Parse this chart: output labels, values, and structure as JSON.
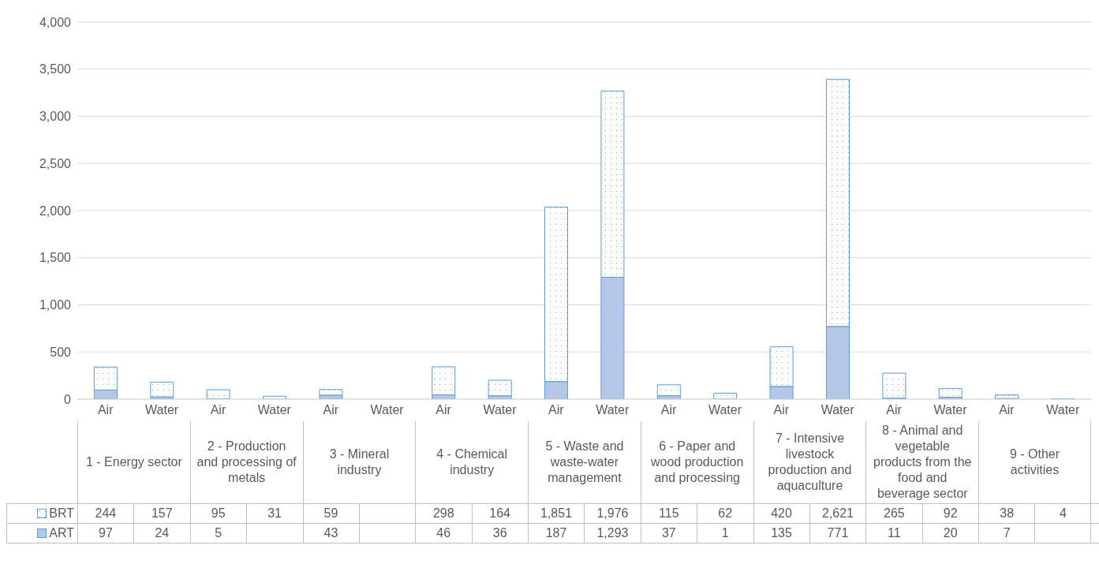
{
  "chart_data": {
    "type": "bar",
    "stacked": true,
    "categories": [
      "Air",
      "Water",
      "Air",
      "Water",
      "Air",
      "Water",
      "Air",
      "Water",
      "Air",
      "Water",
      "Air",
      "Water",
      "Air",
      "Water",
      "Air",
      "Water",
      "Air",
      "Water"
    ],
    "series": [
      {
        "name": "ART",
        "color": "#b4c7e7",
        "values": [
          97,
          24,
          5,
          null,
          43,
          null,
          46,
          36,
          187,
          1293,
          37,
          1,
          135,
          771,
          11,
          20,
          7,
          null
        ],
        "value_labels": [
          "97",
          "24",
          "5",
          null,
          "43",
          null,
          "46",
          "36",
          "187",
          "1,293",
          "37",
          "1",
          "135",
          "771",
          "11",
          "20",
          "7",
          null
        ]
      },
      {
        "name": "BRT",
        "color": "#5b9bd5",
        "values": [
          244,
          157,
          95,
          31,
          59,
          null,
          298,
          164,
          1851,
          1976,
          115,
          62,
          420,
          2621,
          265,
          92,
          38,
          4
        ],
        "value_labels": [
          "244",
          "157",
          "95",
          "31",
          "59",
          null,
          "298",
          "164",
          "1,851",
          "1,976",
          "115",
          "62",
          "420",
          "2,621",
          "265",
          "92",
          "38",
          "4"
        ]
      }
    ],
    "annotations": [
      "1 - Energy sector",
      "2 - Production and processing of metals",
      "3 - Mineral industry",
      "4 - Chemical industry",
      "5 - Waste and waste-water management",
      "6 - Paper and wood production and processing",
      "7 - Intensive livestock production and aquaculture",
      "8 - Animal and vegetable products from the food and beverage sector",
      "9 - Other activities"
    ],
    "ylim": [
      0,
      4000
    ],
    "yticks": [
      0,
      500,
      {
        "value": 1000,
        "label": "1,000"
      },
      {
        "value": 1500,
        "label": "1,500"
      },
      {
        "value": 2000,
        "label": "2,000"
      },
      {
        "value": 2500,
        "label": "2,500"
      },
      {
        "value": 3000,
        "label": "3,000"
      },
      {
        "value": 3500,
        "label": "3,500"
      },
      {
        "value": 4000,
        "label": "4,000"
      }
    ],
    "grid": "y",
    "legend": "bottom left"
  }
}
